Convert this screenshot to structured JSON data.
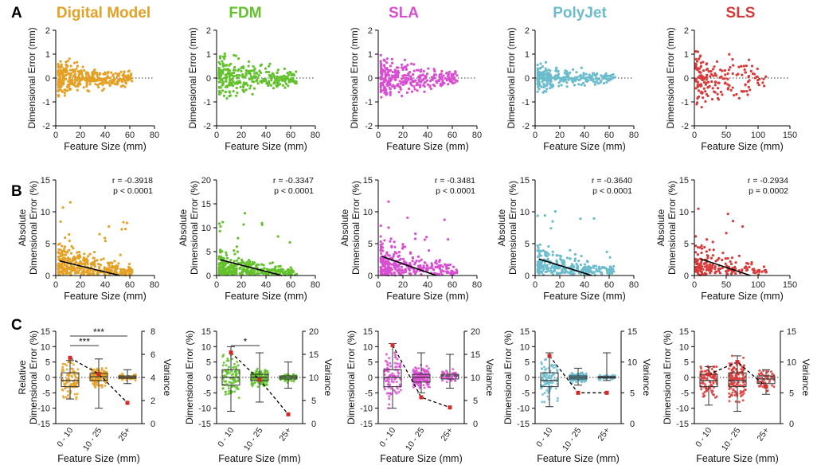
{
  "panel_letters": [
    "A",
    "B",
    "C"
  ],
  "chart_data": [
    {
      "panel": "A",
      "type": "scatter",
      "series": [
        {
          "name": "Digital Model",
          "color": "#e5a125",
          "xlim": [
            0,
            80
          ],
          "xticks": [
            "0",
            "20",
            "40",
            "60",
            "80"
          ],
          "xmax_data": 60,
          "spread": 0.35,
          "n": 360
        },
        {
          "name": "FDM",
          "color": "#62c22b",
          "xlim": [
            0,
            80
          ],
          "xticks": [
            "0",
            "20",
            "40",
            "60",
            "80"
          ],
          "xmax_data": 63,
          "spread": 0.45,
          "n": 320
        },
        {
          "name": "SLA",
          "color": "#d94fd2",
          "xlim": [
            0,
            80
          ],
          "xticks": [
            "0",
            "20",
            "40",
            "60",
            "80"
          ],
          "xmax_data": 62,
          "spread": 0.4,
          "n": 330
        },
        {
          "name": "PolyJet",
          "color": "#6bbccc",
          "xlim": [
            0,
            80
          ],
          "xticks": [
            "0",
            "20",
            "40",
            "60",
            "80"
          ],
          "xmax_data": 63,
          "spread": 0.25,
          "n": 300
        },
        {
          "name": "SLS",
          "color": "#d93a3a",
          "xlim": [
            0,
            150
          ],
          "xticks": [
            "0",
            "50",
            "100",
            "150"
          ],
          "xmax_data": 112,
          "spread": 0.6,
          "n": 180
        }
      ],
      "ylim": [
        -2,
        2
      ],
      "yticks": [
        "-2",
        "-1",
        "0",
        "1",
        "2"
      ],
      "ylabel": "Dimensional Error (mm)",
      "xlabel": "Feature Size (mm)"
    },
    {
      "panel": "B",
      "type": "scatter",
      "series": [
        {
          "name": "Digital Model",
          "ylim": [
            0,
            15
          ],
          "yticks": [
            "0",
            "5",
            "10",
            "15"
          ],
          "xlim": [
            0,
            80
          ],
          "xticks": [
            "0",
            "20",
            "40",
            "60",
            "80"
          ],
          "r": "r = -0.3918",
          "p": "p < 0.0001",
          "fit": [
            [
              3,
              2.3
            ],
            [
              52,
              0
            ]
          ]
        },
        {
          "name": "FDM",
          "ylim": [
            0,
            20
          ],
          "yticks": [
            "0",
            "5",
            "10",
            "15",
            "20"
          ],
          "xlim": [
            0,
            80
          ],
          "xticks": [
            "0",
            "20",
            "40",
            "60",
            "80"
          ],
          "r": "r = -0.3347",
          "p": "p < 0.0001",
          "fit": [
            [
              3,
              3.3
            ],
            [
              53,
              0
            ]
          ]
        },
        {
          "name": "SLA",
          "ylim": [
            0,
            15
          ],
          "yticks": [
            "0",
            "5",
            "10",
            "15"
          ],
          "xlim": [
            0,
            80
          ],
          "xticks": [
            "0",
            "20",
            "40",
            "60",
            "80"
          ],
          "r": "r = -0.3481",
          "p": "p < 0.0001",
          "fit": [
            [
              3,
              3.0
            ],
            [
              47,
              0
            ]
          ]
        },
        {
          "name": "PolyJet",
          "ylim": [
            0,
            15
          ],
          "yticks": [
            "0",
            "5",
            "10",
            "15"
          ],
          "xlim": [
            0,
            80
          ],
          "xticks": [
            "0",
            "20",
            "40",
            "60",
            "80"
          ],
          "r": "r = -0.3640",
          "p": "p < 0.0001",
          "fit": [
            [
              3,
              2.6
            ],
            [
              46,
              0
            ]
          ]
        },
        {
          "name": "SLS",
          "ylim": [
            0,
            15
          ],
          "yticks": [
            "0",
            "5",
            "10",
            "15"
          ],
          "xlim": [
            0,
            150
          ],
          "xticks": [
            "0",
            "50",
            "100",
            "150"
          ],
          "r": "r = -0.2934",
          "p": "p = 0.0002",
          "fit": [
            [
              10,
              2.6
            ],
            [
              88,
              0
            ]
          ]
        }
      ],
      "ylabel": [
        "Absolute",
        "Dimensional Error (%)"
      ],
      "xlabel": "Feature Size (mm)"
    },
    {
      "panel": "C",
      "type": "box",
      "categories": [
        "0 - 10",
        "10 - 25",
        "25+"
      ],
      "ylim": [
        -15,
        15
      ],
      "yticks": [
        "-15",
        "-10",
        "-5",
        "0",
        "5",
        "10",
        "15"
      ],
      "xlabel": "Feature Size (mm)",
      "y2label": "Variance",
      "series": [
        {
          "name": "Digital Model",
          "ylabel": [
            "Relative",
            "Dimensional Error (%)"
          ],
          "y2lim": [
            0,
            8
          ],
          "y2ticks": [
            "0",
            "2",
            "4",
            "6",
            "8"
          ],
          "boxes": [
            {
              "min": -7,
              "q1": -3,
              "med": -1,
              "q3": 1.5,
              "max": 5.5
            },
            {
              "min": -10,
              "q1": -1,
              "med": 0.2,
              "q3": 1.3,
              "max": 6
            },
            {
              "min": -2,
              "q1": -0.3,
              "med": 0.1,
              "q3": 0.5,
              "max": 2.5
            }
          ],
          "variance": [
            5.7,
            4.3,
            1.8
          ],
          "sig": [
            {
              "from": 0,
              "to": 1,
              "label": "***"
            },
            {
              "from": 0,
              "to": 2,
              "label": "***"
            }
          ]
        },
        {
          "name": "FDM",
          "ylabel": [
            "Dimensional Error (%)"
          ],
          "y2lim": [
            0,
            20
          ],
          "y2ticks": [
            "0",
            "5",
            "10",
            "15",
            "20"
          ],
          "boxes": [
            {
              "min": -11,
              "q1": -2.5,
              "med": 0,
              "q3": 2.5,
              "max": 10
            },
            {
              "min": -8,
              "q1": -1,
              "med": 0,
              "q3": 1,
              "max": 8
            },
            {
              "min": -3.5,
              "q1": -0.5,
              "med": 0,
              "q3": 0.5,
              "max": 5
            }
          ],
          "variance": [
            15.4,
            9.5,
            2.0
          ],
          "sig": [
            {
              "from": 0,
              "to": 1,
              "label": "*"
            }
          ]
        },
        {
          "name": "SLA",
          "ylabel": [
            "Dimensional Error (%)"
          ],
          "y2lim": [
            0,
            20
          ],
          "y2ticks": [
            "0",
            "5",
            "10",
            "15",
            "20"
          ],
          "boxes": [
            {
              "min": -10,
              "q1": -3,
              "med": 0,
              "q3": 2.5,
              "max": 11
            },
            {
              "min": -5,
              "q1": -1.5,
              "med": 0,
              "q3": 1,
              "max": 8
            },
            {
              "min": -3.5,
              "q1": -0.5,
              "med": 0.5,
              "q3": 1,
              "max": 7.5
            }
          ],
          "variance": [
            17.0,
            5.7,
            3.5
          ],
          "sig": []
        },
        {
          "name": "PolyJet",
          "ylabel": [
            "Dimensional Error (%)"
          ],
          "y2lim": [
            0,
            15
          ],
          "y2ticks": [
            "0",
            "5",
            "10",
            "15"
          ],
          "boxes": [
            {
              "min": -9.5,
              "q1": -3,
              "med": -1,
              "q3": 1.5,
              "max": 8
            },
            {
              "min": -2.5,
              "q1": -0.5,
              "med": 0,
              "q3": 0.5,
              "max": 3
            },
            {
              "min": -1,
              "q1": -0.2,
              "med": 0,
              "q3": 0.3,
              "max": 8
            }
          ],
          "variance": [
            11.0,
            5.0,
            5.0
          ],
          "sig": []
        },
        {
          "name": "SLS",
          "ylabel": [
            "Dimensional Error (%)"
          ],
          "y2lim": [
            0,
            15
          ],
          "y2ticks": [
            "0",
            "5",
            "10",
            "15"
          ],
          "boxes": [
            {
              "min": -9,
              "q1": -3,
              "med": -1,
              "q3": 1,
              "max": 3.5
            },
            {
              "min": -11,
              "q1": -3,
              "med": -1,
              "q3": 1.5,
              "max": 7
            },
            {
              "min": -5.5,
              "q1": -2,
              "med": -0.5,
              "q3": 0.5,
              "max": 2.5
            }
          ],
          "variance": [
            8.0,
            10.0,
            6.0
          ],
          "sig": []
        }
      ]
    }
  ]
}
